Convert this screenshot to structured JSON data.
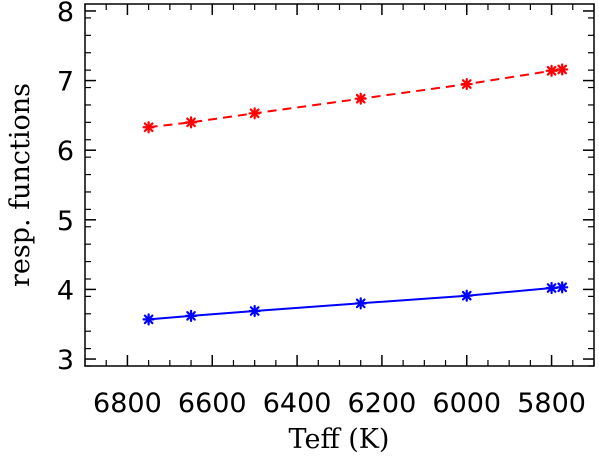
{
  "chart_data": {
    "type": "line",
    "title": "",
    "xlabel": "Teff (K)",
    "ylabel": "resp. functions",
    "xlim": [
      6900,
      5700
    ],
    "ylim": [
      2.9,
      8.1
    ],
    "x_reversed": true,
    "grid": false,
    "legend": "none",
    "x_ticks": [
      6800,
      6600,
      6400,
      6200,
      6000,
      5800
    ],
    "y_ticks": [
      3,
      4,
      5,
      6,
      7,
      8
    ],
    "x_minor_step": 50,
    "y_minor_step": 0.25,
    "series": [
      {
        "color": "#ff0000",
        "line_style": "dashed",
        "marker": "asterisk",
        "x": [
          6750,
          6650,
          6500,
          6250,
          6000,
          5800,
          5775
        ],
        "y": [
          6.33,
          6.4,
          6.53,
          6.74,
          6.95,
          7.14,
          7.16
        ]
      },
      {
        "color": "#0000ff",
        "line_style": "solid",
        "marker": "asterisk",
        "x": [
          6750,
          6650,
          6500,
          6250,
          6000,
          5800,
          5775
        ],
        "y": [
          3.57,
          3.62,
          3.69,
          3.8,
          3.91,
          4.02,
          4.03
        ]
      }
    ]
  }
}
